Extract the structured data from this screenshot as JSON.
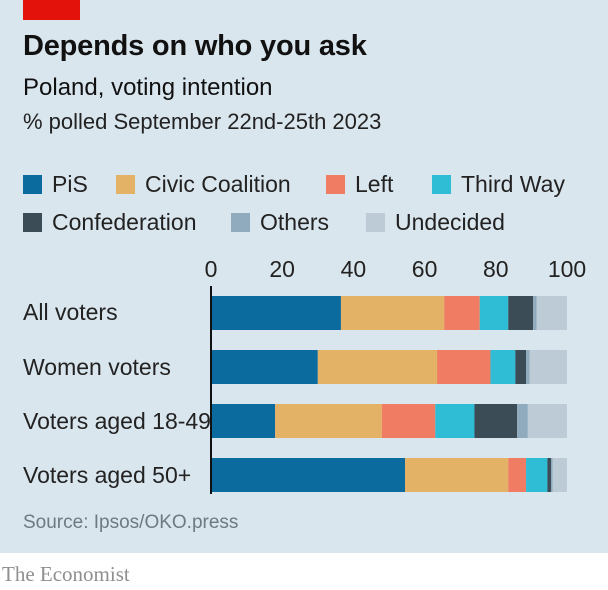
{
  "header": {
    "title": "Depends on who you ask",
    "subtitle": "Poland, voting intention",
    "subsubtitle": "% polled September 22nd-25th 2023"
  },
  "legend": [
    {
      "label": "PiS",
      "color": "#0b6b9e"
    },
    {
      "label": "Civic Coalition",
      "color": "#e3b266"
    },
    {
      "label": "Left",
      "color": "#f07d63"
    },
    {
      "label": "Third Way",
      "color": "#2fbdd6"
    },
    {
      "label": "Confederation",
      "color": "#3b4c57"
    },
    {
      "label": "Others",
      "color": "#8fabbd"
    },
    {
      "label": "Undecided",
      "color": "#bccbd5"
    }
  ],
  "chart_data": {
    "type": "bar",
    "orientation": "horizontal",
    "stacked": true,
    "categories": [
      "All voters",
      "Women voters",
      "Voters aged 18-49",
      "Voters aged 50+"
    ],
    "series": [
      {
        "name": "PiS",
        "values": [
          36.5,
          30,
          18,
          54.5
        ]
      },
      {
        "name": "Civic Coalition",
        "values": [
          29,
          33.5,
          30,
          29
        ]
      },
      {
        "name": "Left",
        "values": [
          10,
          15,
          15,
          5
        ]
      },
      {
        "name": "Third Way",
        "values": [
          8,
          7,
          11,
          6
        ]
      },
      {
        "name": "Confederation",
        "values": [
          7,
          3,
          12,
          1
        ]
      },
      {
        "name": "Others",
        "values": [
          1,
          1,
          3,
          0.5
        ]
      },
      {
        "name": "Undecided",
        "values": [
          8.5,
          10.5,
          11,
          4
        ]
      }
    ],
    "xlim": [
      0,
      100
    ],
    "xticks": [
      "0",
      "20",
      "40",
      "60",
      "80",
      "100"
    ],
    "axis_position": "top"
  },
  "footer": {
    "source": "Source: Ipsos/OKO.press",
    "brand": "The Economist"
  }
}
